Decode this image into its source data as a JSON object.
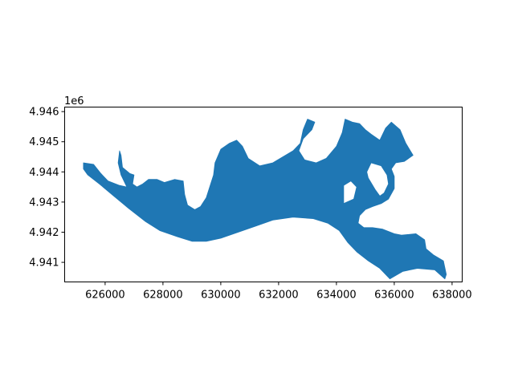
{
  "chart_data": {
    "type": "map",
    "title": "",
    "xlabel": "",
    "ylabel": "",
    "xlim": [
      624600,
      638350
    ],
    "ylim": [
      4940350,
      4946150
    ],
    "x_ticks": [
      626000,
      628000,
      630000,
      632000,
      634000,
      636000,
      638000
    ],
    "x_tick_labels": [
      "626000",
      "628000",
      "630000",
      "632000",
      "634000",
      "636000",
      "638000"
    ],
    "y_ticks": [
      4941000,
      4942000,
      4943000,
      4944000,
      4945000,
      4946000
    ],
    "y_tick_labels": [
      "4.941",
      "4.942",
      "4.943",
      "4.944",
      "4.945",
      "4.946"
    ],
    "y_offset_label": "1e6",
    "grid": false,
    "polygon_color": "#1f77b4",
    "polygon": [
      [
        625250,
        4944300
      ],
      [
        625600,
        4944250
      ],
      [
        625850,
        4943950
      ],
      [
        626100,
        4943700
      ],
      [
        626500,
        4943550
      ],
      [
        626750,
        4943500
      ],
      [
        626550,
        4943900
      ],
      [
        626450,
        4944300
      ],
      [
        626500,
        4944700
      ],
      [
        626550,
        4944550
      ],
      [
        626600,
        4944150
      ],
      [
        626850,
        4943950
      ],
      [
        627000,
        4943900
      ],
      [
        626950,
        4943600
      ],
      [
        627100,
        4943500
      ],
      [
        627300,
        4943600
      ],
      [
        627500,
        4943750
      ],
      [
        627800,
        4943750
      ],
      [
        628050,
        4943650
      ],
      [
        628400,
        4943750
      ],
      [
        628700,
        4943700
      ],
      [
        628750,
        4943250
      ],
      [
        628850,
        4942900
      ],
      [
        629100,
        4942750
      ],
      [
        629300,
        4942850
      ],
      [
        629500,
        4943150
      ],
      [
        629750,
        4943900
      ],
      [
        629800,
        4944300
      ],
      [
        630000,
        4944750
      ],
      [
        630300,
        4944950
      ],
      [
        630550,
        4945050
      ],
      [
        630750,
        4944850
      ],
      [
        630950,
        4944450
      ],
      [
        631350,
        4944200
      ],
      [
        631800,
        4944300
      ],
      [
        632150,
        4944500
      ],
      [
        632500,
        4944700
      ],
      [
        632750,
        4944950
      ],
      [
        632850,
        4945400
      ],
      [
        633000,
        4945750
      ],
      [
        633250,
        4945650
      ],
      [
        633150,
        4945400
      ],
      [
        632850,
        4945100
      ],
      [
        632700,
        4944700
      ],
      [
        632900,
        4944400
      ],
      [
        633300,
        4944300
      ],
      [
        633650,
        4944450
      ],
      [
        634000,
        4944850
      ],
      [
        634200,
        4945300
      ],
      [
        634300,
        4945750
      ],
      [
        634550,
        4945650
      ],
      [
        634800,
        4945600
      ],
      [
        635000,
        4945400
      ],
      [
        635200,
        4945250
      ],
      [
        635500,
        4945050
      ],
      [
        635700,
        4945450
      ],
      [
        635900,
        4945650
      ],
      [
        636200,
        4945400
      ],
      [
        636400,
        4944950
      ],
      [
        636650,
        4944550
      ],
      [
        636350,
        4944350
      ],
      [
        636050,
        4944300
      ],
      [
        635900,
        4944100
      ],
      [
        636000,
        4943850
      ],
      [
        636000,
        4943450
      ],
      [
        635800,
        4943100
      ],
      [
        635550,
        4942950
      ],
      [
        635250,
        4942850
      ],
      [
        635000,
        4942750
      ],
      [
        634800,
        4942550
      ],
      [
        634750,
        4942300
      ],
      [
        634950,
        4942150
      ],
      [
        635250,
        4942150
      ],
      [
        635600,
        4942100
      ],
      [
        636000,
        4941950
      ],
      [
        636250,
        4941900
      ],
      [
        636750,
        4941950
      ],
      [
        637050,
        4941750
      ],
      [
        637100,
        4941450
      ],
      [
        637350,
        4941250
      ],
      [
        637700,
        4941050
      ],
      [
        637800,
        4940600
      ],
      [
        637750,
        4940450
      ],
      [
        637400,
        4940750
      ],
      [
        636800,
        4940800
      ],
      [
        636300,
        4940700
      ],
      [
        635850,
        4940450
      ],
      [
        635500,
        4940800
      ],
      [
        635100,
        4941050
      ],
      [
        634700,
        4941350
      ],
      [
        634400,
        4941650
      ],
      [
        634100,
        4942050
      ],
      [
        633700,
        4942300
      ],
      [
        633200,
        4942450
      ],
      [
        632500,
        4942500
      ],
      [
        631800,
        4942400
      ],
      [
        631200,
        4942200
      ],
      [
        630600,
        4942000
      ],
      [
        630000,
        4941800
      ],
      [
        629500,
        4941700
      ],
      [
        629000,
        4941700
      ],
      [
        628500,
        4941850
      ],
      [
        627900,
        4942050
      ],
      [
        627400,
        4942350
      ],
      [
        626800,
        4942800
      ],
      [
        626300,
        4943200
      ],
      [
        625800,
        4943600
      ],
      [
        625400,
        4943900
      ],
      [
        625250,
        4944100
      ]
    ],
    "holes": [
      [
        [
          635200,
          4944300
        ],
        [
          635550,
          4944200
        ],
        [
          635750,
          4943900
        ],
        [
          635800,
          4943600
        ],
        [
          635650,
          4943300
        ],
        [
          635500,
          4943200
        ],
        [
          635350,
          4943400
        ],
        [
          635100,
          4943800
        ],
        [
          635050,
          4944000
        ]
      ],
      [
        [
          634250,
          4942950
        ],
        [
          634600,
          4943100
        ],
        [
          634700,
          4943500
        ],
        [
          634500,
          4943700
        ],
        [
          634250,
          4943550
        ]
      ]
    ]
  }
}
